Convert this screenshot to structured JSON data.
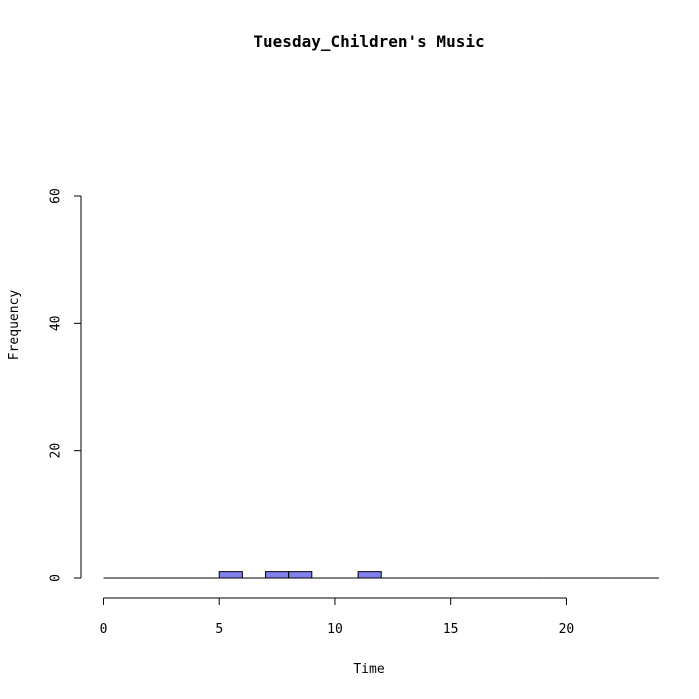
{
  "chart_data": {
    "type": "bar",
    "title": "Tuesday_Children's Music",
    "xlabel": "Time",
    "ylabel": "Frequency",
    "bin_width": 1,
    "bins": [
      {
        "start": 0,
        "count": 0
      },
      {
        "start": 1,
        "count": 0
      },
      {
        "start": 2,
        "count": 0
      },
      {
        "start": 3,
        "count": 0
      },
      {
        "start": 4,
        "count": 0
      },
      {
        "start": 5,
        "count": 1
      },
      {
        "start": 6,
        "count": 0
      },
      {
        "start": 7,
        "count": 1
      },
      {
        "start": 8,
        "count": 1
      },
      {
        "start": 9,
        "count": 0
      },
      {
        "start": 10,
        "count": 0
      },
      {
        "start": 11,
        "count": 1
      },
      {
        "start": 12,
        "count": 0
      },
      {
        "start": 13,
        "count": 0
      },
      {
        "start": 14,
        "count": 0
      },
      {
        "start": 15,
        "count": 0
      },
      {
        "start": 16,
        "count": 0
      },
      {
        "start": 17,
        "count": 0
      },
      {
        "start": 18,
        "count": 0
      },
      {
        "start": 19,
        "count": 0
      },
      {
        "start": 20,
        "count": 0
      },
      {
        "start": 21,
        "count": 0
      },
      {
        "start": 22,
        "count": 0
      },
      {
        "start": 23,
        "count": 0
      }
    ],
    "xlim": [
      0,
      24
    ],
    "ylim": [
      0,
      60
    ],
    "xticks": [
      0,
      5,
      10,
      15,
      20
    ],
    "yticks": [
      0,
      20,
      40,
      60
    ],
    "bar_color": "#8080ee",
    "grid": false
  }
}
